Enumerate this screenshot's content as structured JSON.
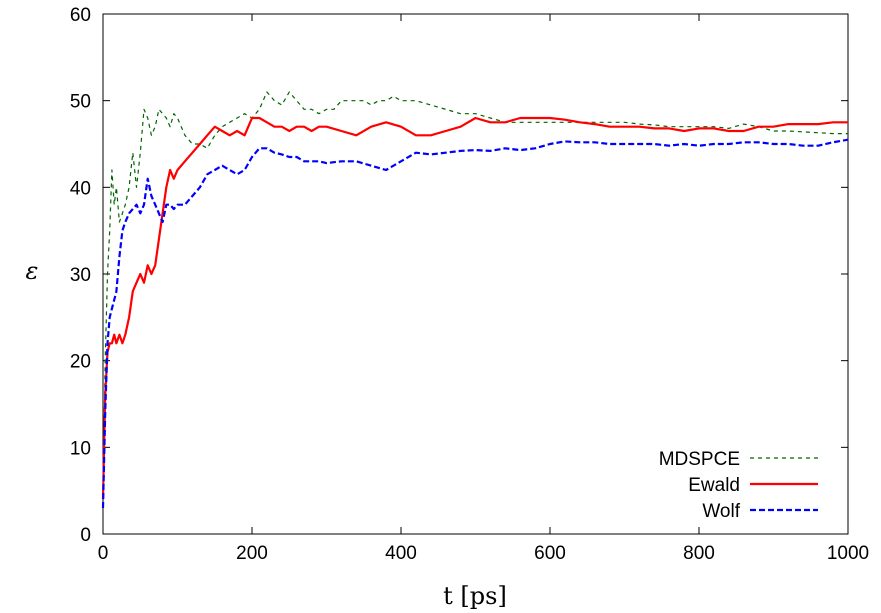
{
  "chart_data": {
    "type": "line",
    "title": "",
    "xlabel": "t [ps]",
    "ylabel": "ε",
    "xlim": [
      0,
      1000
    ],
    "ylim": [
      0,
      60
    ],
    "xticks": [
      0,
      200,
      400,
      600,
      800,
      1000
    ],
    "yticks": [
      0,
      10,
      20,
      30,
      40,
      50,
      60
    ],
    "grid": false,
    "legend_position": "bottom-right",
    "series": [
      {
        "name": "MDSPCE",
        "color": "#006400",
        "dash": "dashed-fine",
        "x": [
          0,
          3,
          6,
          9,
          12,
          15,
          18,
          22,
          26,
          30,
          35,
          40,
          45,
          50,
          55,
          60,
          65,
          70,
          75,
          80,
          85,
          90,
          95,
          100,
          110,
          120,
          130,
          140,
          150,
          160,
          170,
          180,
          190,
          200,
          210,
          220,
          230,
          240,
          250,
          260,
          270,
          280,
          290,
          300,
          310,
          320,
          330,
          340,
          350,
          360,
          370,
          380,
          390,
          400,
          420,
          440,
          460,
          480,
          500,
          520,
          540,
          560,
          580,
          600,
          620,
          640,
          660,
          680,
          700,
          720,
          740,
          760,
          780,
          800,
          820,
          840,
          860,
          880,
          900,
          920,
          940,
          960,
          980,
          1000
        ],
        "y": [
          4,
          20,
          30,
          35,
          42,
          38,
          40,
          36,
          37,
          38,
          40,
          44,
          40,
          44,
          49,
          48,
          46,
          47,
          49,
          48.5,
          48,
          47,
          48.5,
          48,
          46,
          45,
          45,
          44.5,
          46,
          47,
          47.5,
          48,
          48.5,
          48,
          49,
          51,
          50,
          49.5,
          51,
          50,
          49,
          49,
          48.5,
          49,
          49,
          50,
          50,
          50,
          50,
          49.5,
          50,
          50,
          50.5,
          50,
          50,
          49.5,
          49,
          48.5,
          48.5,
          48,
          47.5,
          47.5,
          47.5,
          47.5,
          47.5,
          47.5,
          47.5,
          47.5,
          47.5,
          47.3,
          47.2,
          47,
          47,
          47,
          47,
          46.8,
          47.3,
          47,
          46.5,
          46.5,
          46.4,
          46.3,
          46.2,
          46.2
        ]
      },
      {
        "name": "Ewald",
        "color": "#ff0000",
        "dash": "solid",
        "x": [
          0,
          3,
          6,
          9,
          12,
          15,
          18,
          22,
          26,
          30,
          35,
          40,
          45,
          50,
          55,
          60,
          65,
          70,
          75,
          80,
          85,
          90,
          95,
          100,
          110,
          120,
          130,
          140,
          150,
          160,
          170,
          180,
          190,
          200,
          210,
          220,
          230,
          240,
          250,
          260,
          270,
          280,
          290,
          300,
          320,
          340,
          360,
          380,
          400,
          420,
          440,
          460,
          480,
          500,
          520,
          540,
          560,
          580,
          600,
          620,
          640,
          660,
          680,
          700,
          720,
          740,
          760,
          780,
          800,
          820,
          840,
          860,
          880,
          900,
          920,
          940,
          960,
          980,
          1000
        ],
        "y": [
          4,
          16,
          21,
          22,
          22,
          23,
          22,
          23,
          22,
          23,
          25,
          28,
          29,
          30,
          29,
          31,
          30,
          31,
          34,
          37,
          40,
          42,
          41,
          42,
          43,
          44,
          45,
          46,
          47,
          46.5,
          46,
          46.5,
          46,
          48,
          48,
          47.5,
          47,
          47,
          46.5,
          47,
          47,
          46.5,
          47,
          47,
          46.5,
          46,
          47,
          47.5,
          47,
          46,
          46,
          46.5,
          47,
          48,
          47.5,
          47.5,
          48,
          48,
          48,
          47.8,
          47.5,
          47.3,
          47,
          47,
          47,
          46.8,
          46.8,
          46.5,
          46.8,
          46.8,
          46.5,
          46.5,
          47,
          47,
          47.3,
          47.3,
          47.3,
          47.5,
          47.5
        ]
      },
      {
        "name": "Wolf",
        "color": "#0000ff",
        "dash": "dashed",
        "x": [
          0,
          3,
          6,
          9,
          12,
          15,
          18,
          22,
          26,
          30,
          35,
          40,
          45,
          50,
          55,
          60,
          65,
          70,
          75,
          80,
          85,
          90,
          95,
          100,
          110,
          120,
          130,
          140,
          150,
          160,
          170,
          180,
          190,
          200,
          210,
          220,
          230,
          240,
          250,
          260,
          270,
          280,
          290,
          300,
          320,
          340,
          360,
          380,
          400,
          420,
          440,
          460,
          480,
          500,
          520,
          540,
          560,
          580,
          600,
          620,
          640,
          660,
          680,
          700,
          720,
          740,
          760,
          780,
          800,
          820,
          840,
          860,
          880,
          900,
          920,
          940,
          960,
          980,
          1000
        ],
        "y": [
          3,
          14,
          22,
          25,
          26,
          27,
          28,
          32,
          35,
          36,
          37,
          37.5,
          38,
          37,
          38,
          41,
          39,
          38,
          37,
          36,
          38,
          38,
          37.5,
          38,
          38,
          39,
          40,
          41.5,
          42,
          42.5,
          42,
          41.5,
          42,
          43.5,
          44.5,
          44.5,
          44,
          43.8,
          43.5,
          43.5,
          43,
          43,
          43,
          42.8,
          43,
          43,
          42.5,
          42,
          43,
          44,
          43.8,
          44,
          44.2,
          44.3,
          44.2,
          44.5,
          44.3,
          44.5,
          45,
          45.3,
          45.2,
          45.2,
          45,
          45,
          45,
          45,
          44.8,
          45,
          44.8,
          45,
          45,
          45.2,
          45.2,
          45,
          45,
          44.8,
          44.8,
          45.2,
          45.5
        ]
      }
    ]
  }
}
